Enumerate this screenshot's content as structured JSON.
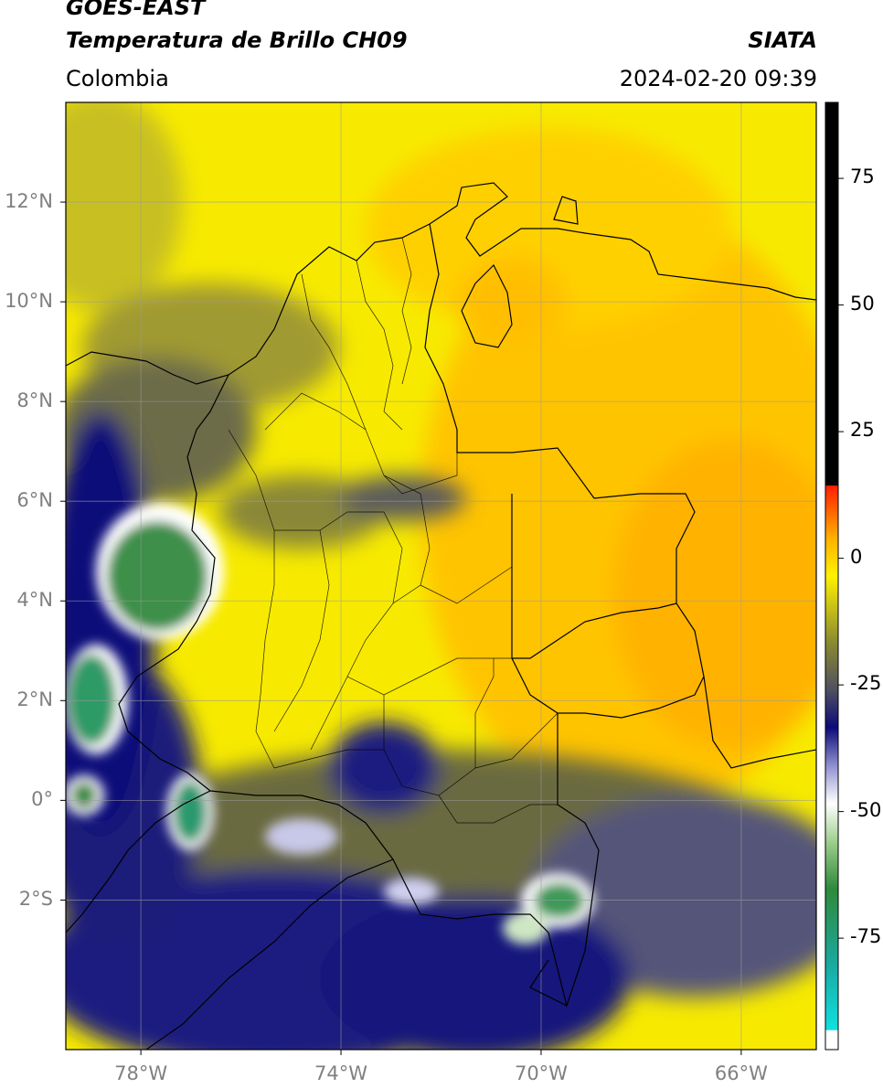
{
  "header": {
    "satellite": "GOES-EAST",
    "product": "Temperatura de Brillo CH09",
    "brand": "SIATA",
    "region": "Colombia",
    "timestamp": "2024-02-20 09:39"
  },
  "map": {
    "lon_range": [
      -79.5,
      -64.5
    ],
    "lat_range": [
      -5.0,
      14.0
    ],
    "lat_ticks": [
      {
        "value": 12,
        "label": "12°N"
      },
      {
        "value": 10,
        "label": "10°N"
      },
      {
        "value": 8,
        "label": "8°N"
      },
      {
        "value": 6,
        "label": "6°N"
      },
      {
        "value": 4,
        "label": "4°N"
      },
      {
        "value": 2,
        "label": "2°N"
      },
      {
        "value": 0,
        "label": "0°"
      },
      {
        "value": -2,
        "label": "2°S"
      }
    ],
    "lon_ticks": [
      {
        "value": -78,
        "label": "78°W"
      },
      {
        "value": -74,
        "label": "74°W"
      },
      {
        "value": -70,
        "label": "70°W"
      },
      {
        "value": -66,
        "label": "66°W"
      }
    ]
  },
  "colorbar": {
    "range": [
      -97,
      90
    ],
    "ticks": [
      {
        "value": 75,
        "label": "75"
      },
      {
        "value": 50,
        "label": "50"
      },
      {
        "value": 25,
        "label": "25"
      },
      {
        "value": 0,
        "label": "0"
      },
      {
        "value": -25,
        "label": "-25"
      },
      {
        "value": -50,
        "label": "-50"
      },
      {
        "value": -75,
        "label": "-75"
      }
    ],
    "colors": {
      "black": "#000000",
      "red": "#ff2000",
      "orange": "#ff9a00",
      "yellow": "#fff200",
      "olive": "#707040",
      "navy": "#0b0b7a",
      "white": "#ffffff",
      "green": "#2f8a3a",
      "cyan": "#10e0e0"
    }
  }
}
